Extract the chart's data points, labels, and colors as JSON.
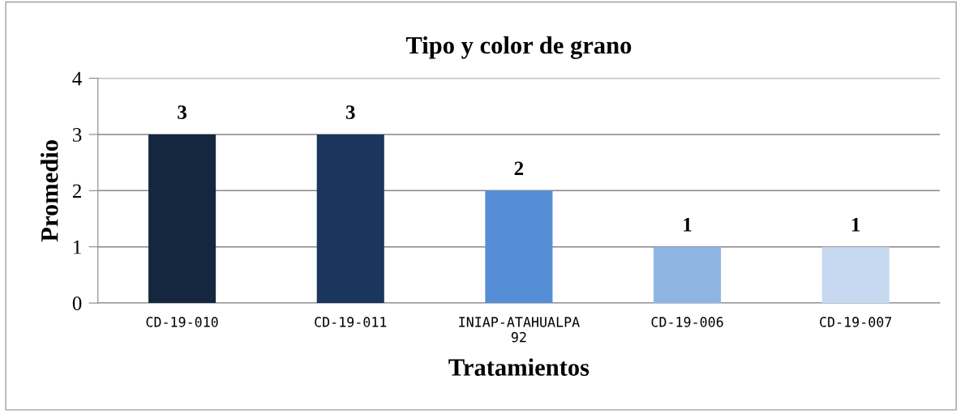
{
  "chart_data": {
    "type": "bar",
    "title": "Tipo y color de grano",
    "xlabel": "Tratamientos",
    "ylabel": "Promedio",
    "categories": [
      "CD-19-010",
      "CD-19-011",
      "INIAP-ATAHUALPA 92",
      "CD-19-006",
      "CD-19-007"
    ],
    "values": [
      3,
      3,
      2,
      1,
      1
    ],
    "colors": [
      "#14273f",
      "#1a365d",
      "#558ed5",
      "#8eb4e3",
      "#c6d9f1"
    ],
    "ylim": [
      0,
      4
    ],
    "yticks": [
      0,
      1,
      2,
      3,
      4
    ],
    "grid": "y",
    "data_labels": true
  }
}
